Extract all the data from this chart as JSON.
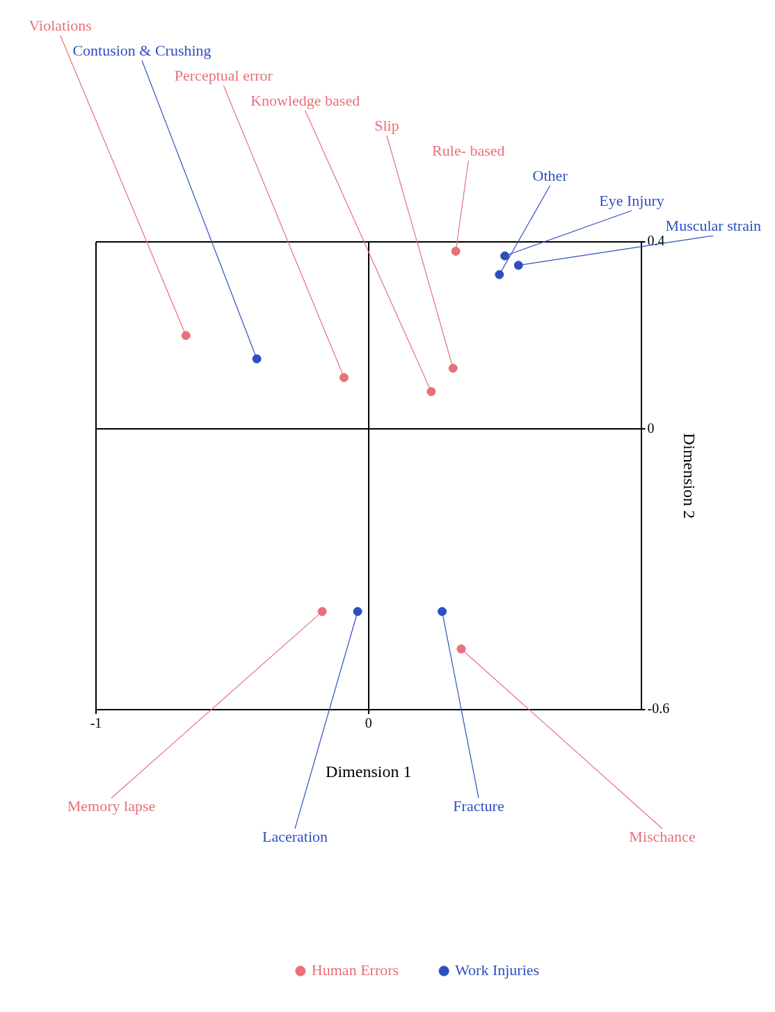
{
  "chart_data": {
    "type": "scatter",
    "xlabel": "Dimension 1",
    "ylabel": "Dimension 2",
    "xlim": [
      -1,
      1
    ],
    "ylim": [
      -0.6,
      0.4
    ],
    "xticks": [
      -1,
      0
    ],
    "yticks": [
      0.4,
      0,
      -0.6
    ],
    "grid": true,
    "legend": "bottom",
    "marker": "circle",
    "series": [
      {
        "name": "Human Errors",
        "color": "#e8707a",
        "x": [
          -0.67,
          -0.09,
          0.32,
          0.31,
          0.23,
          -0.17,
          0.34
        ],
        "values": [
          0.2,
          0.11,
          0.38,
          0.13,
          0.08,
          -0.39,
          -0.47
        ]
      },
      {
        "name": "Work Injuries",
        "color": "#2f4fbf",
        "x": [
          -0.41,
          0.5,
          0.48,
          0.55,
          -0.04,
          0.27
        ],
        "values": [
          0.15,
          0.37,
          0.33,
          0.35,
          -0.39,
          -0.39
        ]
      }
    ],
    "annotations": [
      {
        "text": "Violations",
        "x": -0.67,
        "y": 0.2
      },
      {
        "text": "Perceptual error",
        "x": -0.09,
        "y": 0.11
      },
      {
        "text": "Rule- based",
        "x": 0.32,
        "y": 0.38
      },
      {
        "text": "Slip",
        "x": 0.31,
        "y": 0.13
      },
      {
        "text": "Knowledge based",
        "x": 0.23,
        "y": 0.08
      },
      {
        "text": "Memory lapse",
        "x": -0.17,
        "y": -0.39
      },
      {
        "text": "Mischance",
        "x": 0.34,
        "y": -0.47
      },
      {
        "text": "Contusion & Crushing",
        "x": -0.41,
        "y": 0.15
      },
      {
        "text": "Eye Injury",
        "x": 0.5,
        "y": 0.37
      },
      {
        "text": "Other",
        "x": 0.48,
        "y": 0.33
      },
      {
        "text": "Muscular strain",
        "x": 0.55,
        "y": 0.35
      },
      {
        "text": "Laceration",
        "x": -0.04,
        "y": -0.39
      },
      {
        "text": "Fracture",
        "x": 0.27,
        "y": -0.39
      }
    ]
  }
}
